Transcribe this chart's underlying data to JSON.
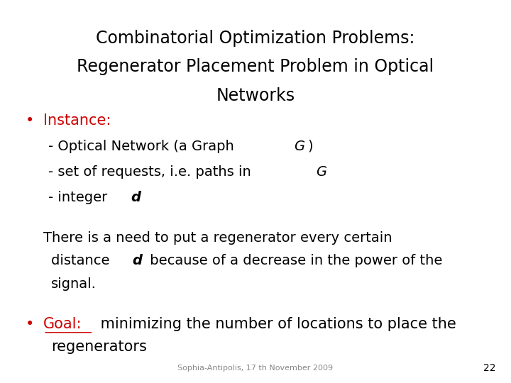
{
  "title_line1": "Combinatorial Optimization Problems:",
  "title_line2": "Regenerator Placement Problem in Optical",
  "title_line3": "Networks",
  "title_color": "#000000",
  "title_fontsize": 17,
  "bullet1_label": "Instance:",
  "bullet1_color": "#cc0000",
  "bullet1_fontsize": 15,
  "sub1_normal": "- Optical Network (a Graph ",
  "sub1_italic": "G",
  "sub1_suffix": ")",
  "sub2_normal": "- set of requests, i.e. paths in ",
  "sub2_italic": "G",
  "sub3_normal": "- integer ",
  "sub3_bold_italic": "d",
  "body1": "There is a need to put a regenerator every certain",
  "body2_pre": "distance ",
  "body2_bi": "d",
  "body2_suf": " because of a decrease in the power of the",
  "body3": "signal.",
  "bullet2_label": "Goal:",
  "bullet2_color": "#cc0000",
  "bullet2_fontsize": 15,
  "bullet2_rest": " minimizing the number of locations to place the",
  "bullet2_line2": "regenerators",
  "footer": "Sophia-Antipolis, 17 th November 2009",
  "footer_fontsize": 8,
  "page_number": "22",
  "page_number_fontsize": 10,
  "background_color": "#ffffff",
  "text_color": "#000000",
  "body_fontsize": 14,
  "sub_fontsize": 14
}
